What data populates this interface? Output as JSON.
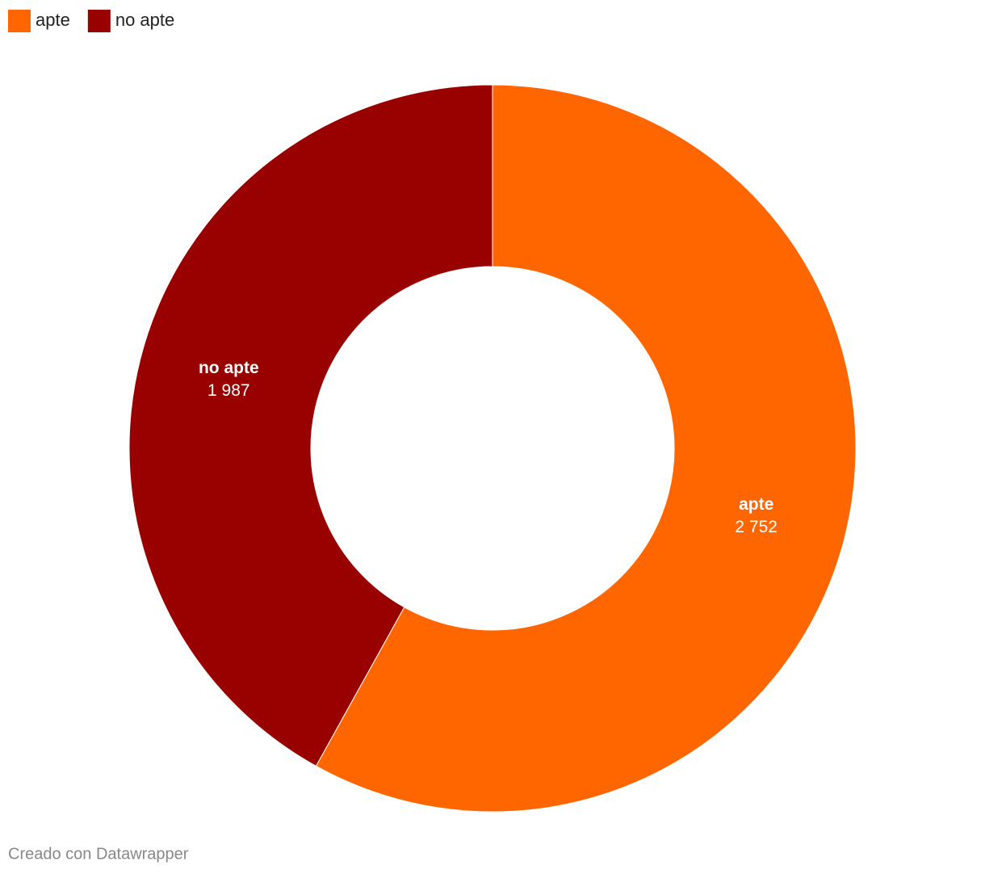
{
  "chart_data": {
    "type": "donut",
    "categories": [
      "apte",
      "no apte"
    ],
    "values": [
      2752,
      1987
    ],
    "value_labels": [
      "2 752",
      "1 987"
    ],
    "colors": [
      "#ff6600",
      "#990000"
    ],
    "legend": "top-left"
  },
  "footer": "Creado con Datawrapper"
}
